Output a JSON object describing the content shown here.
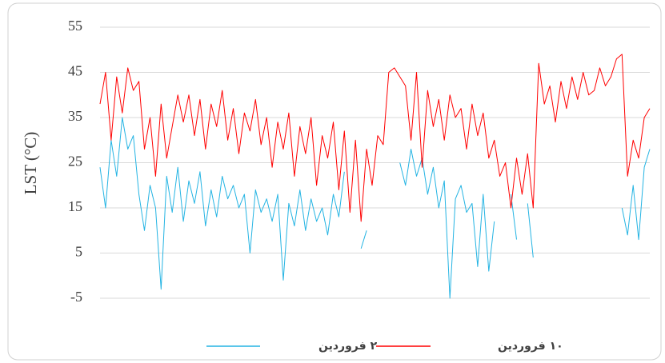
{
  "chart_data": {
    "type": "line",
    "y_label": "LST (°C)",
    "ylim": [
      -5,
      55
    ],
    "yticks": [
      -5,
      5,
      15,
      25,
      35,
      45,
      55
    ],
    "grid": true,
    "series": [
      {
        "name": "۲ فروردین",
        "color": "#25b4e3",
        "values": [
          24,
          15,
          30,
          22,
          35,
          28,
          31,
          18,
          10,
          20,
          15,
          -3,
          22,
          14,
          24,
          12,
          21,
          16,
          23,
          11,
          19,
          13,
          22,
          17,
          20,
          15,
          18,
          5,
          19,
          14,
          17,
          12,
          18,
          -1,
          16,
          11,
          19,
          10,
          17,
          12,
          15,
          9,
          18,
          13,
          23,
          null,
          null,
          6,
          10,
          null,
          null,
          null,
          null,
          null,
          25,
          20,
          28,
          22,
          26,
          18,
          24,
          15,
          21,
          -5,
          17,
          20,
          14,
          16,
          2,
          18,
          1,
          12,
          null,
          null,
          18,
          8,
          null,
          16,
          4,
          null,
          null,
          null,
          null,
          null,
          null,
          null,
          null,
          null,
          null,
          null,
          null,
          null,
          null,
          null,
          15,
          9,
          20,
          8,
          24,
          28
        ]
      },
      {
        "name": "۱۰ فروردین",
        "color": "#ff0000",
        "values": [
          38,
          45,
          30,
          44,
          36,
          46,
          41,
          43,
          28,
          35,
          22,
          38,
          26,
          33,
          40,
          34,
          40,
          31,
          39,
          28,
          38,
          33,
          41,
          30,
          37,
          27,
          36,
          32,
          39,
          29,
          35,
          24,
          34,
          28,
          36,
          22,
          33,
          27,
          35,
          20,
          31,
          26,
          34,
          19,
          32,
          14,
          30,
          12,
          28,
          20,
          31,
          29,
          45,
          46,
          44,
          42,
          30,
          45,
          24,
          41,
          33,
          39,
          30,
          40,
          35,
          37,
          28,
          38,
          31,
          36,
          26,
          30,
          22,
          25,
          15,
          26,
          18,
          27,
          15,
          47,
          38,
          42,
          34,
          43,
          37,
          44,
          39,
          45,
          40,
          41,
          46,
          42,
          44,
          48,
          49,
          22,
          30,
          26,
          35,
          37
        ]
      }
    ]
  }
}
